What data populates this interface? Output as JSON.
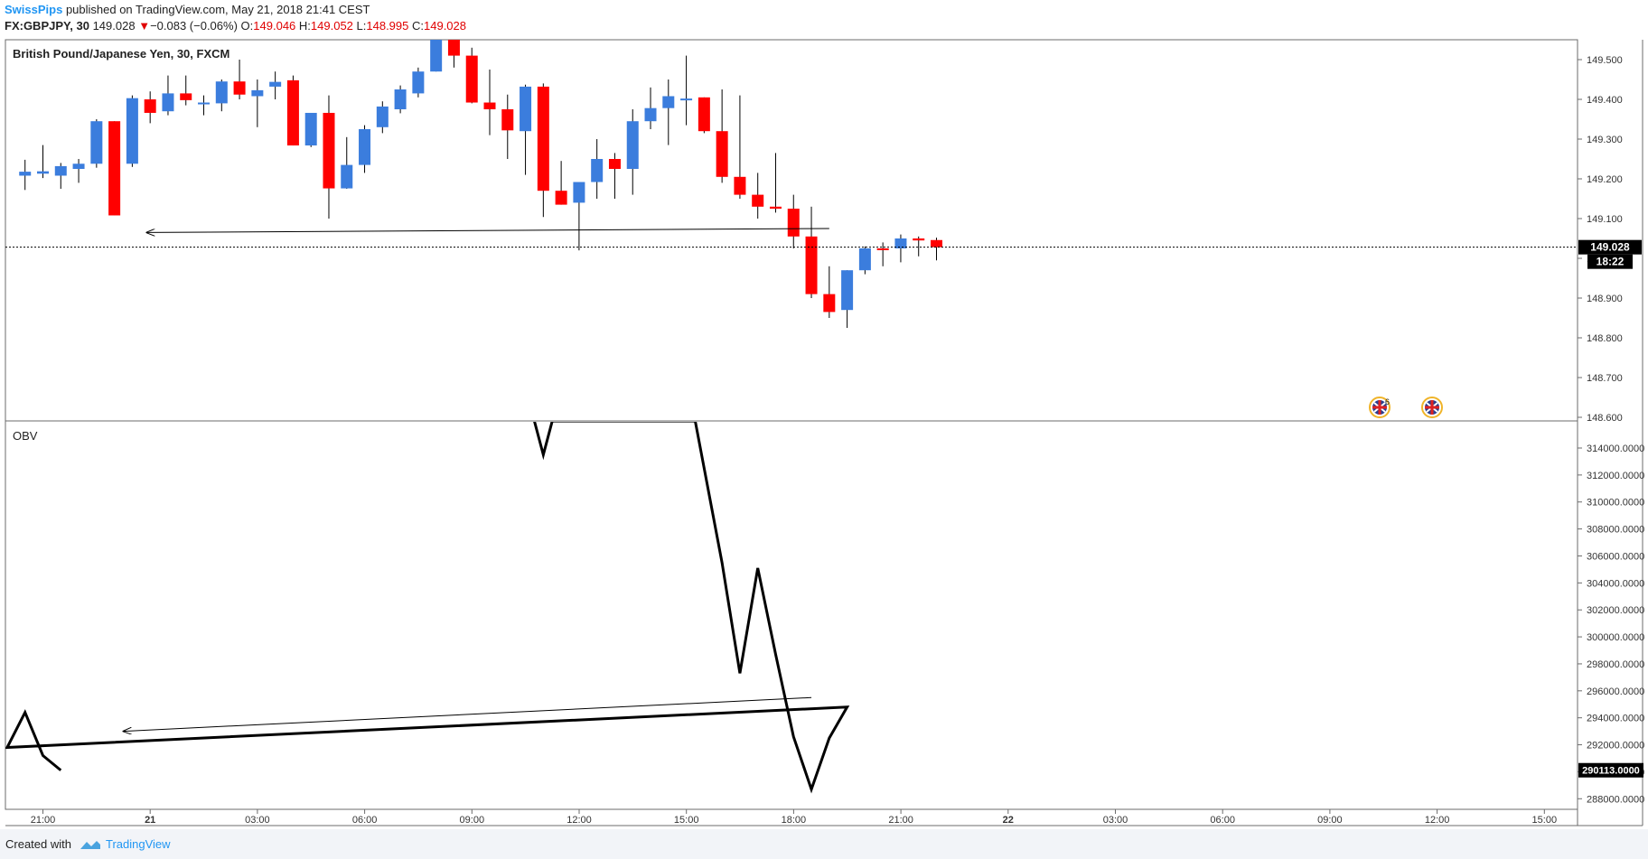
{
  "header": {
    "author": "SwissPips",
    "published": "published on TradingView.com, May 21, 2018 21:41 CEST",
    "symbol": "FX:GBPJPY, 30",
    "last": "149.028",
    "change": "−0.083 (−0.06%)",
    "o_label": "O:",
    "o_value": "149.046",
    "h_label": "H:",
    "h_value": "149.052",
    "l_label": "L:",
    "l_value": "148.995",
    "c_label": "C:",
    "c_value": "149.028"
  },
  "footer": {
    "created": "Created with",
    "brand": "TradingView"
  },
  "chart_data": [
    {
      "type": "candlestick",
      "title": "British Pound/Japanese Yen, 30, FXCM",
      "up_color": "#3b7ddd",
      "down_color": "#ff0000",
      "ylim": [
        148.6,
        149.6
      ],
      "y_ticks": [
        "149.500",
        "149.400",
        "149.300",
        "149.200",
        "149.100",
        "149.000",
        "148.900",
        "148.800",
        "148.700",
        "148.600"
      ],
      "last_price_label": "149.028",
      "countdown_label": "18:22",
      "x_ticks": [
        "21:00",
        "21",
        "03:00",
        "06:00",
        "09:00",
        "12:00",
        "15:00",
        "18:00",
        "21:00",
        "22",
        "03:00",
        "06:00",
        "09:00",
        "12:00",
        "15:00"
      ],
      "candles": [
        {
          "t": "20:30",
          "o": 149.208,
          "h": 149.248,
          "l": 149.172,
          "c": 149.218
        },
        {
          "t": "21:00",
          "o": 149.213,
          "h": 149.285,
          "l": 149.202,
          "c": 149.219
        },
        {
          "t": "21:30",
          "o": 149.208,
          "h": 149.24,
          "l": 149.175,
          "c": 149.232
        },
        {
          "t": "22:00",
          "o": 149.225,
          "h": 149.25,
          "l": 149.19,
          "c": 149.238
        },
        {
          "t": "22:30",
          "o": 149.238,
          "h": 149.35,
          "l": 149.228,
          "c": 149.345
        },
        {
          "t": "23:00",
          "o": 149.345,
          "h": 149.345,
          "l": 149.108,
          "c": 149.108
        },
        {
          "t": "23:30",
          "o": 149.238,
          "h": 149.41,
          "l": 149.23,
          "c": 149.403
        },
        {
          "t": "00:00",
          "o": 149.4,
          "h": 149.42,
          "l": 149.34,
          "c": 149.366
        },
        {
          "t": "00:30",
          "o": 149.37,
          "h": 149.46,
          "l": 149.36,
          "c": 149.415
        },
        {
          "t": "01:00",
          "o": 149.415,
          "h": 149.46,
          "l": 149.385,
          "c": 149.398
        },
        {
          "t": "01:30",
          "o": 149.392,
          "h": 149.41,
          "l": 149.36,
          "c": 149.392
        },
        {
          "t": "02:00",
          "o": 149.39,
          "h": 149.45,
          "l": 149.37,
          "c": 149.445
        },
        {
          "t": "02:30",
          "o": 149.445,
          "h": 149.5,
          "l": 149.4,
          "c": 149.412
        },
        {
          "t": "03:00",
          "o": 149.408,
          "h": 149.45,
          "l": 149.33,
          "c": 149.423
        },
        {
          "t": "03:30",
          "o": 149.432,
          "h": 149.47,
          "l": 149.4,
          "c": 149.444
        },
        {
          "t": "04:00",
          "o": 149.448,
          "h": 149.46,
          "l": 149.284,
          "c": 149.284
        },
        {
          "t": "04:30",
          "o": 149.284,
          "h": 149.365,
          "l": 149.28,
          "c": 149.366
        },
        {
          "t": "05:00",
          "o": 149.366,
          "h": 149.41,
          "l": 149.1,
          "c": 149.176
        },
        {
          "t": "05:30",
          "o": 149.176,
          "h": 149.305,
          "l": 149.175,
          "c": 149.235
        },
        {
          "t": "06:00",
          "o": 149.235,
          "h": 149.335,
          "l": 149.215,
          "c": 149.325
        },
        {
          "t": "06:30",
          "o": 149.33,
          "h": 149.395,
          "l": 149.315,
          "c": 149.382
        },
        {
          "t": "07:00",
          "o": 149.375,
          "h": 149.435,
          "l": 149.365,
          "c": 149.425
        },
        {
          "t": "07:30",
          "o": 149.415,
          "h": 149.48,
          "l": 149.405,
          "c": 149.47
        },
        {
          "t": "08:00",
          "o": 149.47,
          "h": 149.6,
          "l": 149.47,
          "c": 149.6
        },
        {
          "t": "08:30",
          "o": 149.6,
          "h": 149.6,
          "l": 149.48,
          "c": 149.51
        },
        {
          "t": "09:00",
          "o": 149.51,
          "h": 149.53,
          "l": 149.39,
          "c": 149.392
        },
        {
          "t": "09:30",
          "o": 149.392,
          "h": 149.475,
          "l": 149.31,
          "c": 149.375
        },
        {
          "t": "10:00",
          "o": 149.375,
          "h": 149.412,
          "l": 149.25,
          "c": 149.322
        },
        {
          "t": "10:30",
          "o": 149.32,
          "h": 149.437,
          "l": 149.21,
          "c": 149.432
        },
        {
          "t": "11:00",
          "o": 149.432,
          "h": 149.44,
          "l": 149.104,
          "c": 149.17
        },
        {
          "t": "11:30",
          "o": 149.17,
          "h": 149.245,
          "l": 149.135,
          "c": 149.135
        },
        {
          "t": "12:00",
          "o": 149.14,
          "h": 149.19,
          "l": 149.02,
          "c": 149.192
        },
        {
          "t": "12:30",
          "o": 149.192,
          "h": 149.3,
          "l": 149.15,
          "c": 149.25
        },
        {
          "t": "13:00",
          "o": 149.25,
          "h": 149.265,
          "l": 149.15,
          "c": 149.225
        },
        {
          "t": "13:30",
          "o": 149.225,
          "h": 149.375,
          "l": 149.16,
          "c": 149.345
        },
        {
          "t": "14:00",
          "o": 149.345,
          "h": 149.43,
          "l": 149.325,
          "c": 149.378
        },
        {
          "t": "14:30",
          "o": 149.378,
          "h": 149.45,
          "l": 149.285,
          "c": 149.408
        },
        {
          "t": "15:00",
          "o": 149.402,
          "h": 149.51,
          "l": 149.335,
          "c": 149.402
        },
        {
          "t": "15:30",
          "o": 149.405,
          "h": 149.405,
          "l": 149.315,
          "c": 149.32
        },
        {
          "t": "16:00",
          "o": 149.32,
          "h": 149.425,
          "l": 149.19,
          "c": 149.205
        },
        {
          "t": "16:30",
          "o": 149.205,
          "h": 149.41,
          "l": 149.15,
          "c": 149.16
        },
        {
          "t": "17:00",
          "o": 149.16,
          "h": 149.215,
          "l": 149.1,
          "c": 149.13
        },
        {
          "t": "17:30",
          "o": 149.13,
          "h": 149.265,
          "l": 149.115,
          "c": 149.125
        },
        {
          "t": "18:00",
          "o": 149.125,
          "h": 149.16,
          "l": 149.025,
          "c": 149.055
        },
        {
          "t": "18:30",
          "o": 149.055,
          "h": 149.13,
          "l": 148.9,
          "c": 148.91
        },
        {
          "t": "19:00",
          "o": 148.91,
          "h": 148.98,
          "l": 148.85,
          "c": 148.865
        },
        {
          "t": "19:30",
          "o": 148.87,
          "h": 148.97,
          "l": 148.825,
          "c": 148.97
        },
        {
          "t": "20:00",
          "o": 148.97,
          "h": 149.03,
          "l": 148.96,
          "c": 149.025
        },
        {
          "t": "20:30",
          "o": 149.025,
          "h": 149.04,
          "l": 148.98,
          "c": 149.022
        },
        {
          "t": "21:00",
          "o": 149.025,
          "h": 149.06,
          "l": 148.99,
          "c": 149.05
        },
        {
          "t": "21:30",
          "o": 149.05,
          "h": 149.055,
          "l": 149.005,
          "c": 149.045
        },
        {
          "t": "22:00",
          "o": 149.046,
          "h": 149.052,
          "l": 148.995,
          "c": 149.028
        }
      ],
      "annotations": {
        "zone_top": 149.065,
        "zone_bottom": 149.025,
        "arrow_start": {
          "t": "19:00",
          "v": 149.075
        },
        "arrow_end": {
          "t": "23:30",
          "v": 149.065
        }
      }
    },
    {
      "type": "line",
      "title": "OBV",
      "ylim": [
        287000,
        315000
      ],
      "y_ticks": [
        "314000.0000",
        "312000.0000",
        "310000.0000",
        "308000.0000",
        "306000.0000",
        "304000.0000",
        "302000.0000",
        "300000.0000",
        "298000.0000",
        "296000.0000",
        "294000.0000",
        "292000.0000",
        "290000.0000",
        "288000.0000"
      ],
      "last_value_label": "290113.0000",
      "series": [
        {
          "color": "#000000",
          "points": [
            {
              "t": "10:45",
              "v": 316000
            },
            {
              "t": "11:00",
              "v": 313500
            },
            {
              "t": "11:15",
              "v": 316000
            },
            {
              "t": "15:15",
              "v": 316000
            },
            {
              "t": "16:00",
              "v": 305500
            },
            {
              "t": "16:30",
              "v": 297300
            },
            {
              "t": "17:00",
              "v": 305100
            },
            {
              "t": "17:30",
              "v": 298700
            },
            {
              "t": "18:00",
              "v": 292600
            },
            {
              "t": "18:30",
              "v": 288700
            },
            {
              "t": "19:00",
              "v": 292500
            },
            {
              "t": "19:30",
              "v": 294800
            },
            {
              "t": "20:00",
              "v": 291800
            },
            {
              "t": "20:30",
              "v": 294400
            },
            {
              "t": "21:00",
              "v": 291200
            },
            {
              "t": "21:30",
              "v": 290113
            }
          ]
        }
      ],
      "annotations": {
        "arrow_start": {
          "t": "18:30",
          "v": 295500
        },
        "arrow_end": {
          "t": "23:00",
          "v": 293000
        }
      }
    }
  ]
}
